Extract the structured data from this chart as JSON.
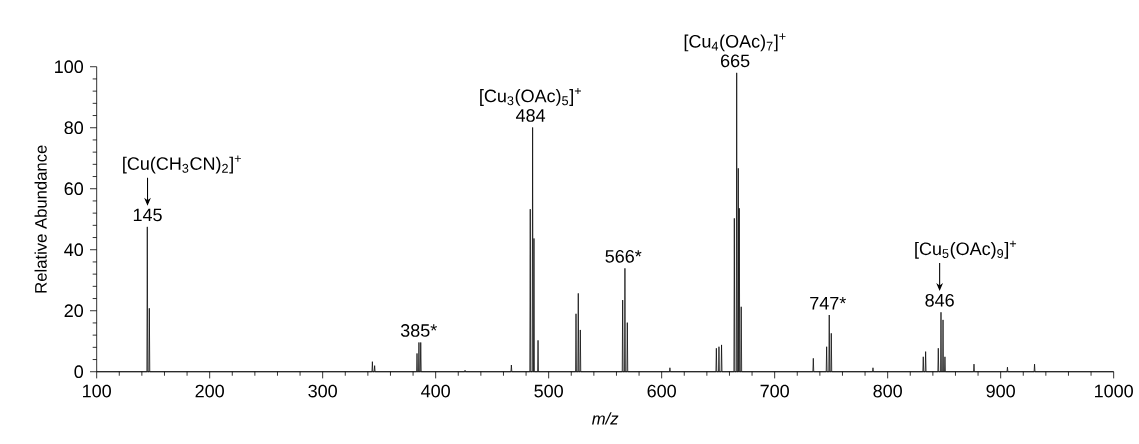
{
  "chart_data": {
    "type": "line",
    "xlabel": "m/z",
    "ylabel": "Relative Abundance",
    "x": [
      100,
      144.4,
      144.8,
      145.2,
      146.2,
      146.6,
      147.0,
      343.6,
      344,
      344.4,
      345.6,
      346,
      346.4,
      383.1,
      383.5,
      383.9,
      384.8,
      385.2,
      385.6,
      386.4,
      386.8,
      387.2,
      425.6,
      426,
      426.4,
      466.6,
      467,
      467.4,
      483.3,
      483.7,
      484.1,
      485.4,
      485.8,
      486.2,
      486.6,
      487,
      487.4,
      490.2,
      490.6,
      491.0,
      523.8,
      524.2,
      524.6,
      525.8,
      526.2,
      526.6,
      527.6,
      528,
      528.4,
      565.1,
      565.5,
      565.9,
      567.1,
      567.5,
      567.9,
      569.2,
      569.6,
      570.0,
      606.9,
      607.3,
      607.7,
      648.0,
      648.4,
      648.8,
      650.3,
      650.7,
      651.1,
      652.6,
      653,
      653.4,
      663.9,
      664.3,
      664.7,
      666.0,
      666.4,
      666.8,
      667.4,
      667.8,
      668.2,
      668.3,
      668.7,
      669.1,
      670.0,
      670.4,
      670.8,
      733.8,
      734.2,
      734.6,
      745.6,
      746,
      746.4,
      747.9,
      748.3,
      748.7,
      749.7,
      750.1,
      750.5,
      786.6,
      787,
      787.4,
      831.1,
      831.5,
      831.9,
      833.2,
      833.6,
      834.0,
      844.4,
      844.8,
      845.2,
      846.8,
      847.2,
      847.6,
      848.6,
      849,
      849.4,
      850.3,
      850.7,
      851.1,
      876.0,
      876.4,
      876.8,
      905.6,
      906,
      906.4,
      929.6,
      930,
      930.4,
      1000
    ],
    "values": [
      0,
      0,
      47.5,
      0,
      0,
      20.8,
      0,
      0,
      3.3,
      0,
      0,
      2.0,
      0,
      0,
      6,
      0,
      0,
      9.6,
      0,
      0,
      9.6,
      0,
      0,
      0.5,
      0,
      0,
      2.2,
      0,
      0,
      53.3,
      0,
      0,
      80.1,
      0,
      0,
      43.7,
      0,
      0,
      10.3,
      0,
      0,
      19,
      0,
      0,
      25.7,
      0,
      0,
      13.7,
      0,
      0,
      23.5,
      0,
      0,
      33.9,
      0,
      0,
      16.1,
      0,
      0,
      1.3,
      0,
      0,
      7.7,
      0,
      0,
      8.2,
      0,
      0,
      8.8,
      0,
      0,
      50.3,
      0,
      0,
      98,
      0,
      0,
      66.7,
      0,
      0,
      53.6,
      0,
      0,
      21.3,
      0,
      0,
      4.4,
      0,
      0,
      8.2,
      0,
      0,
      18.6,
      0,
      0,
      12.6,
      0,
      0,
      1.3,
      0,
      0,
      4.9,
      0,
      0,
      6.6,
      0,
      0,
      7.7,
      0,
      0,
      19.5,
      0,
      0,
      17,
      0,
      0,
      4.9,
      0,
      0,
      2.5,
      0,
      0,
      1.5,
      0,
      0,
      2.5,
      0,
      0
    ],
    "color": "#000000",
    "xlim": [
      100,
      1000
    ],
    "xticks": [
      100,
      200,
      300,
      400,
      500,
      600,
      700,
      800,
      900,
      1000
    ],
    "ylim": [
      0,
      100
    ],
    "yticks": [
      0,
      20,
      40,
      60,
      80,
      100
    ],
    "annotations": [
      {
        "text": "145",
        "x": 145,
        "y": 47.5
      },
      "[Cu(CH$_{3}$CN)$_{2}$]$^{+}$",
      {
        "text": "385*",
        "x": 385,
        "y": 9.6
      },
      {
        "text": "484",
        "x": 484,
        "y": 80.1
      },
      "[Cu$_{3}$(OAc)$_{5}$]$^{+}$",
      {
        "text": "566*",
        "x": 566,
        "y": 33.9
      },
      {
        "text": "665",
        "x": 665,
        "y": 98
      },
      "[Cu$_{4}$(OAc)$_{7}$]$^{+}$",
      {
        "text": "747*",
        "x": 747,
        "y": 18.6
      },
      {
        "text": "846",
        "x": 846,
        "y": 19.5
      },
      "[Cu$_{5}$(OAc)$_{9}$]$^{+}$"
    ]
  }
}
